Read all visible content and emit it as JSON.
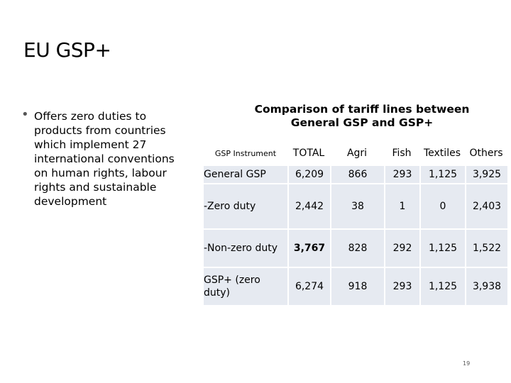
{
  "slide": {
    "title": "EU GSP+",
    "bullet": "Offers zero duties to products from countries which implement 27 international conventions on human rights, labour rights and sustainable development",
    "page_number": "19"
  },
  "table": {
    "title": "Comparison of tariff lines between General GSP and GSP+",
    "headers": [
      "GSP Instrument",
      "TOTAL",
      "Agri",
      "Fish",
      "Textiles",
      "Others"
    ],
    "rows": [
      {
        "label": "General GSP",
        "values": [
          "6,209",
          "866",
          "293",
          "1,125",
          "3,925"
        ]
      },
      {
        "label": "-Zero duty",
        "values": [
          "2,442",
          "38",
          "1",
          "0",
          "2,403"
        ]
      },
      {
        "label": "-Non-zero duty",
        "values": [
          "3,767",
          "828",
          "292",
          "1,125",
          "1,522"
        ]
      },
      {
        "label": "GSP+ (zero duty)",
        "values": [
          "6,274",
          "918",
          "293",
          "1,125",
          "3,938"
        ]
      }
    ],
    "highlight_color": "#ffff00",
    "cell_color": "#e6eaf1"
  }
}
